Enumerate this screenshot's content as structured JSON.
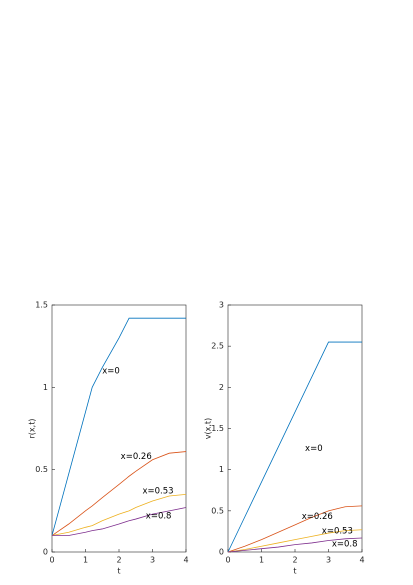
{
  "chart_data": [
    {
      "type": "line",
      "xlabel": "t",
      "ylabel": "r(x,t)",
      "x": [
        0,
        0.5,
        1,
        1.2,
        1.5,
        2,
        2.3,
        2.5,
        3,
        3.5,
        4
      ],
      "xlim": [
        0,
        4
      ],
      "xticks": [
        0,
        1,
        2,
        3,
        4
      ],
      "ylim": [
        0,
        1.5
      ],
      "yticks": [
        0,
        0.5,
        1,
        1.5
      ],
      "series": [
        {
          "name": "x=0",
          "color": "#0072bd",
          "values": [
            0.1,
            0.475,
            0.85,
            1.0,
            1.12,
            1.3,
            1.42,
            1.42,
            1.42,
            1.42,
            1.42
          ]
        },
        {
          "name": "x=0.26",
          "color": "#d95319",
          "values": [
            0.1,
            0.17,
            0.25,
            0.28,
            0.33,
            0.41,
            0.46,
            0.49,
            0.56,
            0.6,
            0.61
          ]
        },
        {
          "name": "x=0.53",
          "color": "#edb120",
          "values": [
            0.1,
            0.12,
            0.15,
            0.16,
            0.19,
            0.23,
            0.25,
            0.27,
            0.31,
            0.34,
            0.35
          ]
        },
        {
          "name": "x=0.8",
          "color": "#7e2f8e",
          "values": [
            0.1,
            0.1,
            0.12,
            0.13,
            0.14,
            0.17,
            0.19,
            0.2,
            0.23,
            0.25,
            0.27
          ]
        }
      ]
    },
    {
      "type": "line",
      "xlabel": "t",
      "ylabel": "v(x,t)",
      "x": [
        0,
        0.5,
        1,
        1.5,
        2,
        2.5,
        3,
        3.5,
        4
      ],
      "xlim": [
        0,
        4
      ],
      "xticks": [
        0,
        1,
        2,
        3,
        4
      ],
      "ylim": [
        0,
        3
      ],
      "yticks": [
        0,
        0.5,
        1,
        1.5,
        2,
        2.5,
        3
      ],
      "series": [
        {
          "name": "x=0",
          "color": "#0072bd",
          "values": [
            0,
            0.425,
            0.85,
            1.275,
            1.7,
            2.125,
            2.55,
            2.55,
            2.55
          ]
        },
        {
          "name": "x=0.26",
          "color": "#d95319",
          "values": [
            0,
            0.07,
            0.15,
            0.24,
            0.33,
            0.42,
            0.5,
            0.55,
            0.56
          ]
        },
        {
          "name": "x=0.53",
          "color": "#edb120",
          "values": [
            0,
            0.03,
            0.07,
            0.11,
            0.15,
            0.19,
            0.23,
            0.26,
            0.27
          ]
        },
        {
          "name": "x=0.8",
          "color": "#7e2f8e",
          "values": [
            0,
            0.02,
            0.04,
            0.06,
            0.09,
            0.11,
            0.14,
            0.16,
            0.17
          ]
        }
      ]
    }
  ]
}
